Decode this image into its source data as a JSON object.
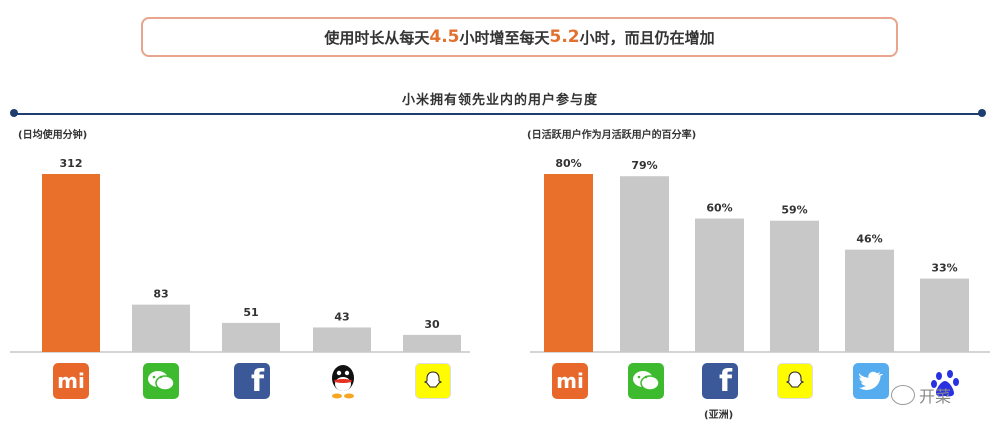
{
  "banner": {
    "part1": "使用时长从每天",
    "num1": "4.5",
    "part2": "小时增至每天",
    "num2": "5.2",
    "part3": "小时，而且仍在增加"
  },
  "section_title": "小米拥有领先业内的用户参与度",
  "colors": {
    "highlight": "#e8702a",
    "bar": "#c8c8c8",
    "line": "#1f3e70"
  },
  "chart_data": [
    {
      "type": "bar",
      "title": "(日均使用分钟)",
      "categories": [
        "Mi",
        "WeChat",
        "Facebook",
        "QQ",
        "Snapchat"
      ],
      "values": [
        312,
        83,
        51,
        43,
        30
      ],
      "value_labels": [
        "312",
        "83",
        "51",
        "43",
        "30"
      ],
      "highlight_index": 0,
      "ylim": [
        0,
        312
      ],
      "icons": [
        "mi-logo-icon",
        "wechat-icon",
        "facebook-icon",
        "qq-icon",
        "snapchat-icon"
      ]
    },
    {
      "type": "bar",
      "title": "(日活跃用户作为月活跃用户的百分率)",
      "categories": [
        "Mi",
        "WeChat",
        "Facebook",
        "Snapchat",
        "Twitter",
        "Baidu"
      ],
      "values": [
        80,
        79,
        60,
        59,
        46,
        33
      ],
      "value_labels": [
        "80%",
        "79%",
        "60%",
        "59%",
        "46%",
        "33%"
      ],
      "highlight_index": 0,
      "ylim": [
        0,
        80
      ],
      "icons": [
        "mi-logo-icon",
        "wechat-icon",
        "facebook-icon",
        "snapchat-icon",
        "twitter-icon",
        "baidu-icon"
      ],
      "notes": [
        "",
        "",
        "(亚洲)",
        "",
        "",
        ""
      ]
    }
  ],
  "icon_text": {
    "mi": "mi",
    "facebook": "f",
    "wechat_small": "WeChat"
  },
  "watermark": "开菜"
}
